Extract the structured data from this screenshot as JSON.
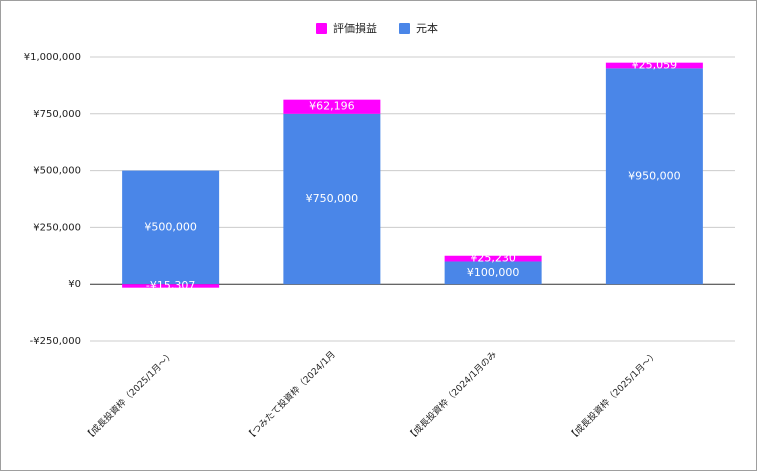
{
  "chart_data": {
    "type": "bar",
    "stacked": true,
    "categories": [
      "【成長投資枠（2025/1月〜）",
      "【つみたて投資枠（2024/1月",
      "【成長投資枠（2024/1月のみ",
      "【成長投資枠（2025/1月〜）"
    ],
    "series": [
      {
        "name": "評価損益",
        "color": "#ff00ff",
        "values": [
          -15307,
          62196,
          25230,
          25059
        ],
        "value_labels": [
          "-¥15,307",
          "¥62,196",
          "¥25,230",
          "¥25,059"
        ]
      },
      {
        "name": "元本",
        "color": "#4a86e8",
        "values": [
          500000,
          750000,
          100000,
          950000
        ],
        "value_labels": [
          "¥500,000",
          "¥750,000",
          "¥100,000",
          "¥950,000"
        ]
      }
    ],
    "ylim": [
      -250000,
      1000000
    ],
    "yticks": [
      {
        "value": -250000,
        "label": "-¥250,000"
      },
      {
        "value": 0,
        "label": "¥0"
      },
      {
        "value": 250000,
        "label": "¥250,000"
      },
      {
        "value": 500000,
        "label": "¥500,000"
      },
      {
        "value": 750000,
        "label": "¥750,000"
      },
      {
        "value": 1000000,
        "label": "¥1,000,000"
      }
    ],
    "grid": true,
    "legend": "top"
  }
}
